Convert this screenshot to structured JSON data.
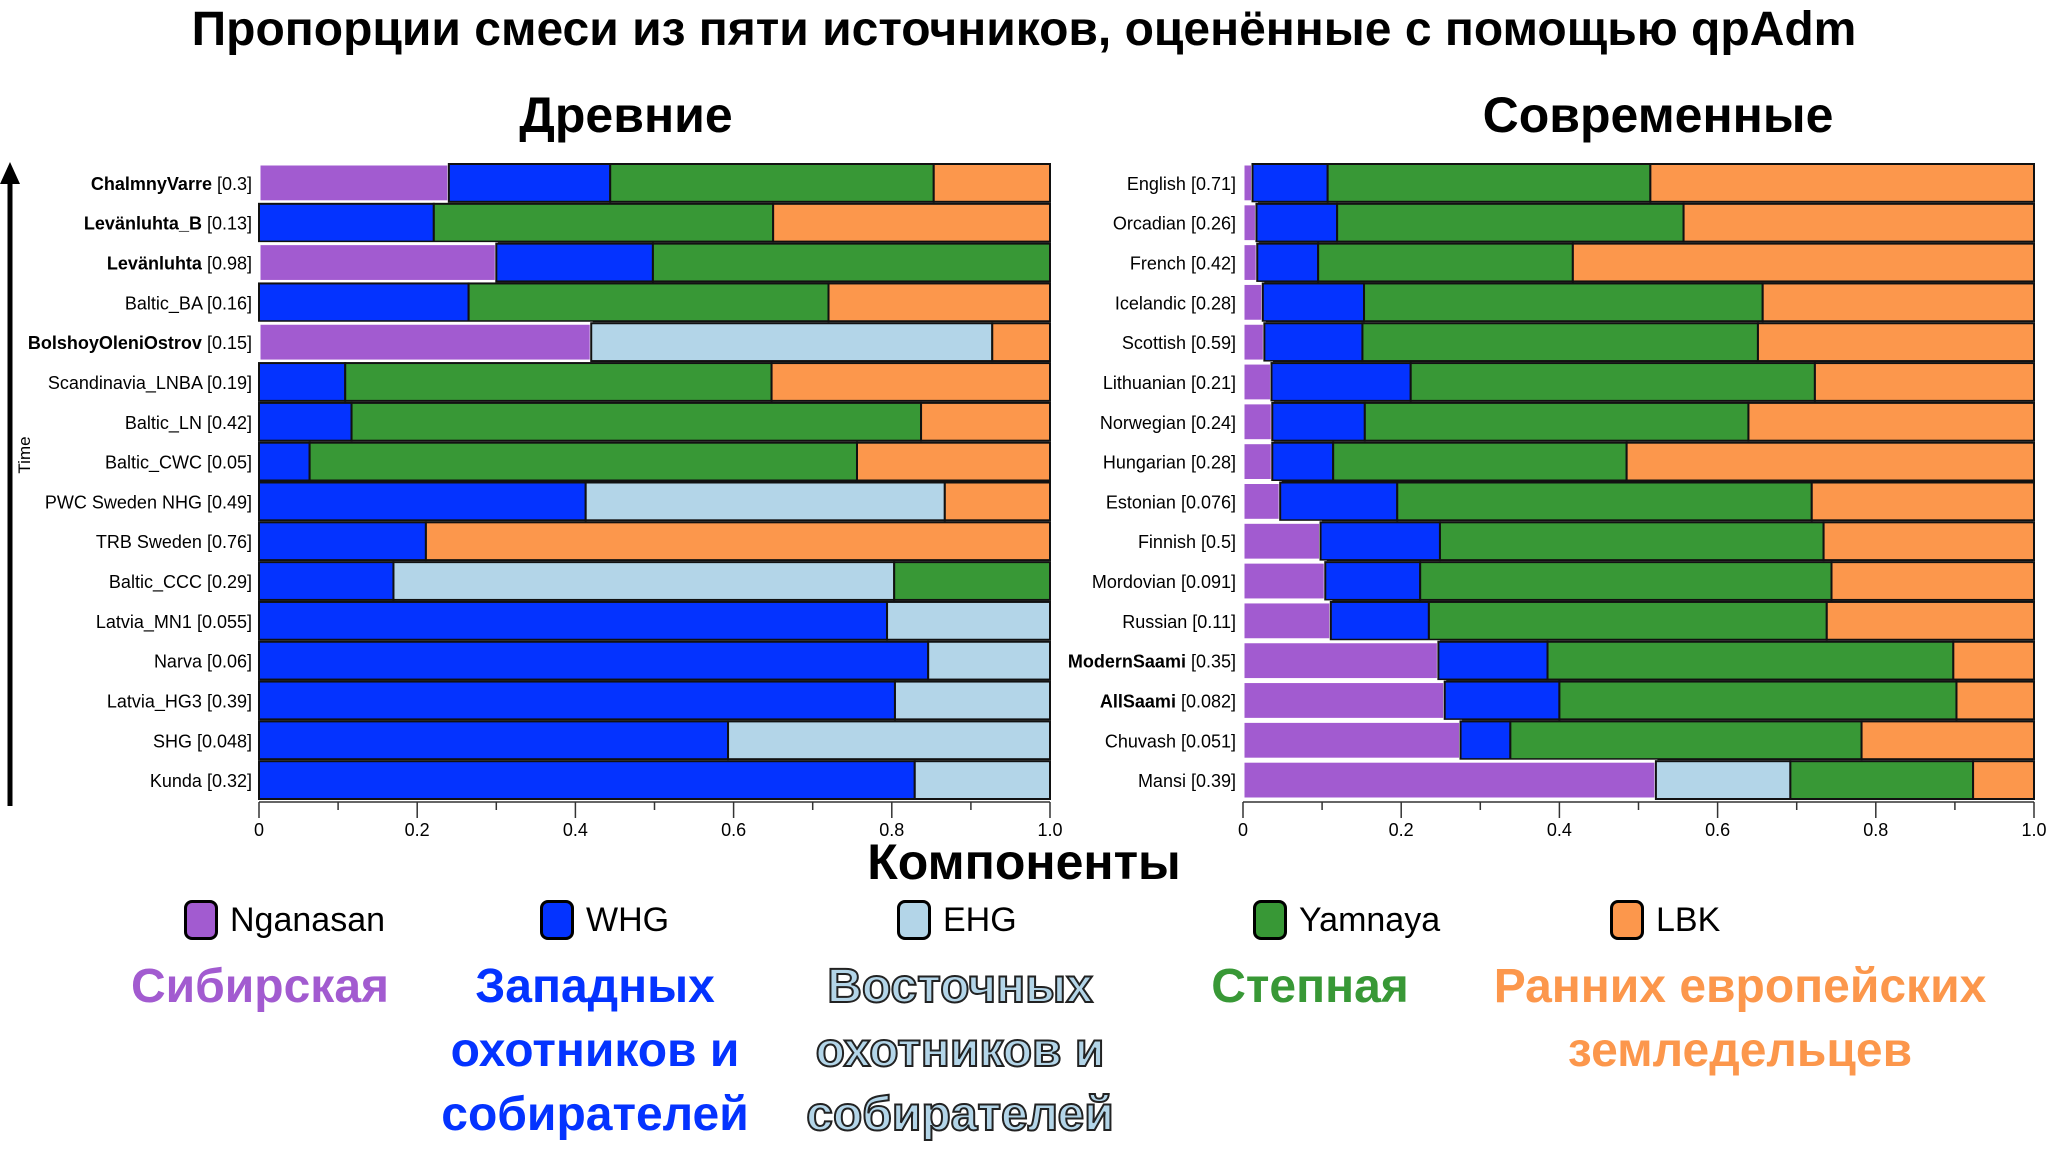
{
  "chart_data": [
    {
      "type": "bar",
      "orientation": "horizontal-stacked",
      "title": "Древние",
      "xlabel": "Компоненты",
      "ylabel": "Time",
      "xlim": [
        0,
        1.0
      ],
      "xticks": [
        "0",
        "0.2",
        "0.4",
        "0.6",
        "0.8",
        "1.0"
      ],
      "categories": [
        {
          "name": "ChalmnyVarre",
          "p": "[0.3]",
          "bold": true
        },
        {
          "name": "Levänluhta_B",
          "p": "[0.13]",
          "bold": true
        },
        {
          "name": "Levänluhta",
          "p": "[0.98]",
          "bold": true
        },
        {
          "name": "Baltic_BA",
          "p": "[0.16]",
          "bold": false
        },
        {
          "name": "BolshoyOleniOstrov",
          "p": "[0.15]",
          "bold": true
        },
        {
          "name": "Scandinavia_LNBA",
          "p": "[0.19]",
          "bold": false
        },
        {
          "name": "Baltic_LN",
          "p": "[0.42]",
          "bold": false
        },
        {
          "name": "Baltic_CWC",
          "p": "[0.05]",
          "bold": false
        },
        {
          "name": "PWC Sweden NHG",
          "p": "[0.49]",
          "bold": false
        },
        {
          "name": "TRB Sweden",
          "p": "[0.76]",
          "bold": false
        },
        {
          "name": "Baltic_CCC",
          "p": "[0.29]",
          "bold": false
        },
        {
          "name": "Latvia_MN1",
          "p": "[0.055]",
          "bold": false
        },
        {
          "name": "Narva",
          "p": "[0.06]",
          "bold": false
        },
        {
          "name": "Latvia_HG3",
          "p": "[0.39]",
          "bold": false
        },
        {
          "name": "SHG",
          "p": "[0.048]",
          "bold": false
        },
        {
          "name": "Kunda",
          "p": "[0.32]",
          "bold": false
        }
      ],
      "series": [
        {
          "name": "Nganasan",
          "values": [
            0.24,
            0,
            0.3,
            0,
            0.42,
            0,
            0,
            0,
            0,
            0,
            0,
            0,
            0,
            0,
            0,
            0
          ]
        },
        {
          "name": "WHG",
          "values": [
            0.204,
            0.221,
            0.198,
            0.265,
            0,
            0.109,
            0.117,
            0.064,
            0.413,
            0.211,
            0.17,
            0.794,
            0.846,
            0.804,
            0.593,
            0.829
          ]
        },
        {
          "name": "EHG",
          "values": [
            0,
            0,
            0,
            0,
            0.507,
            0,
            0,
            0,
            0.454,
            0,
            0.633,
            0.206,
            0.154,
            0.196,
            0.407,
            0.171
          ]
        },
        {
          "name": "Yamnaya",
          "values": [
            0.409,
            0.429,
            0.502,
            0.455,
            0,
            0.539,
            0.72,
            0.692,
            0,
            0,
            0.197,
            0,
            0,
            0,
            0,
            0
          ]
        },
        {
          "name": "LBK",
          "values": [
            0.147,
            0.35,
            0,
            0.28,
            0.073,
            0.352,
            0.163,
            0.244,
            0.133,
            0.789,
            0,
            0,
            0,
            0,
            0,
            0
          ]
        }
      ]
    },
    {
      "type": "bar",
      "orientation": "horizontal-stacked",
      "title": "Современные",
      "xlabel": "Компоненты",
      "xlim": [
        0,
        1.0
      ],
      "xticks": [
        "0",
        "0.2",
        "0.4",
        "0.6",
        "0.8",
        "1.0"
      ],
      "categories": [
        {
          "name": "English",
          "p": "[0.71]",
          "bold": false
        },
        {
          "name": "Orcadian",
          "p": "[0.26]",
          "bold": false
        },
        {
          "name": "French",
          "p": "[0.42]",
          "bold": false
        },
        {
          "name": "Icelandic",
          "p": "[0.28]",
          "bold": false
        },
        {
          "name": "Scottish",
          "p": "[0.59]",
          "bold": false
        },
        {
          "name": "Lithuanian",
          "p": "[0.21]",
          "bold": false
        },
        {
          "name": "Norwegian",
          "p": "[0.24]",
          "bold": false
        },
        {
          "name": "Hungarian",
          "p": "[0.28]",
          "bold": false
        },
        {
          "name": "Estonian",
          "p": "[0.076]",
          "bold": false
        },
        {
          "name": "Finnish",
          "p": "[0.5]",
          "bold": false
        },
        {
          "name": "Mordovian",
          "p": "[0.091]",
          "bold": false
        },
        {
          "name": "Russian",
          "p": "[0.11]",
          "bold": false
        },
        {
          "name": "ModernSaami",
          "p": "[0.35]",
          "bold": true
        },
        {
          "name": "AllSaami",
          "p": "[0.082]",
          "bold": true
        },
        {
          "name": "Chuvash",
          "p": "[0.051]",
          "bold": false
        },
        {
          "name": "Mansi",
          "p": "[0.39]",
          "bold": false
        }
      ],
      "series": [
        {
          "name": "Nganasan",
          "values": [
            0.012,
            0.017,
            0.018,
            0.025,
            0.027,
            0.036,
            0.037,
            0.037,
            0.047,
            0.098,
            0.104,
            0.111,
            0.247,
            0.255,
            0.275,
            0.522
          ]
        },
        {
          "name": "WHG",
          "values": [
            0.095,
            0.102,
            0.077,
            0.128,
            0.124,
            0.176,
            0.117,
            0.077,
            0.148,
            0.151,
            0.12,
            0.124,
            0.138,
            0.145,
            0.063,
            0
          ]
        },
        {
          "name": "EHG",
          "values": [
            0,
            0,
            0,
            0,
            0,
            0,
            0,
            0,
            0,
            0,
            0,
            0,
            0,
            0,
            0,
            0.17
          ]
        },
        {
          "name": "Yamnaya",
          "values": [
            0.408,
            0.438,
            0.322,
            0.504,
            0.5,
            0.511,
            0.485,
            0.371,
            0.524,
            0.485,
            0.52,
            0.503,
            0.513,
            0.502,
            0.444,
            0.231
          ]
        },
        {
          "name": "LBK",
          "values": [
            0.485,
            0.443,
            0.583,
            0.343,
            0.349,
            0.277,
            0.361,
            0.515,
            0.281,
            0.266,
            0.256,
            0.262,
            0.102,
            0.098,
            0.218,
            0.077
          ]
        }
      ]
    }
  ],
  "title": "Пропорции смеси из пяти источников, оценённые с помощью qpAdm",
  "panels": {
    "left_title": "Древние",
    "right_title": "Современные"
  },
  "xlabel": "Компоненты",
  "time_label": "Time",
  "legend": [
    {
      "label": "Nganasan",
      "color": "#a25bd0"
    },
    {
      "label": "WHG",
      "color": "#0433ff"
    },
    {
      "label": "EHG",
      "color": "#b3d5e8"
    },
    {
      "label": "Yamnaya",
      "color": "#389836"
    },
    {
      "label": "LBK",
      "color": "#fc974c"
    }
  ],
  "groups": [
    {
      "lines": [
        "Сибирская"
      ],
      "color": "#a25bd0"
    },
    {
      "lines": [
        "Западных",
        "охотников и",
        "собирателей"
      ],
      "color": "#0433ff"
    },
    {
      "lines": [
        "Восточных",
        "охотников и",
        "собирателей"
      ],
      "color": "#b3d5e8"
    },
    {
      "lines": [
        "Степная"
      ],
      "color": "#389836"
    },
    {
      "lines": [
        "Ранних европейских",
        "земледельцев"
      ],
      "color": "#fc974c"
    }
  ]
}
